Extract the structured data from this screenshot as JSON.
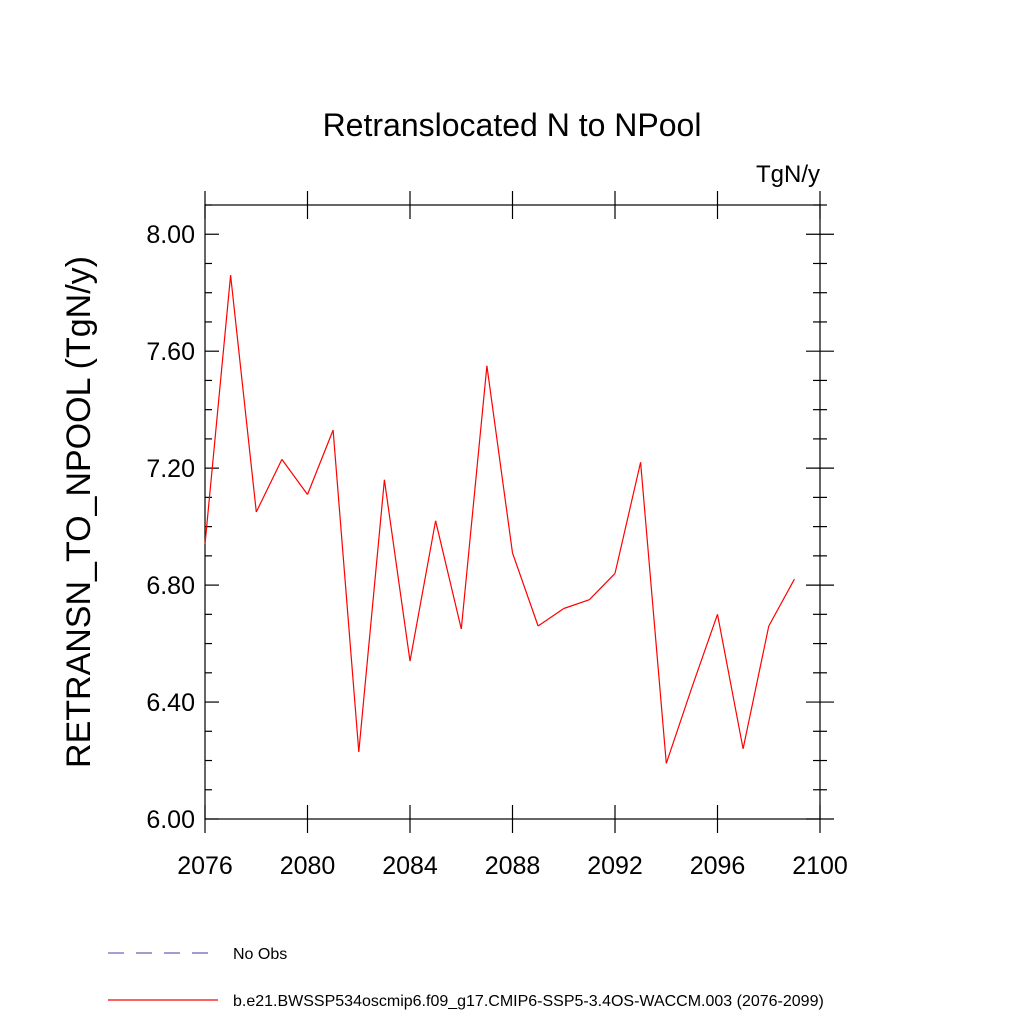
{
  "chart_data": {
    "type": "line",
    "title": "Retranslocated N to NPool",
    "units": "TgN/y",
    "ylabel": "RETRANSN_TO_NPOOL  (TgN/y)",
    "xlabel": "",
    "xlim": [
      2076,
      2100
    ],
    "ylim": [
      6.0,
      8.1
    ],
    "xticks": [
      2076,
      2080,
      2084,
      2088,
      2092,
      2096,
      2100
    ],
    "xtick_labels": [
      "2076",
      "2080",
      "2084",
      "2088",
      "2092",
      "2096",
      "2100"
    ],
    "yticks": [
      6.0,
      6.4,
      6.8,
      7.2,
      7.6,
      8.0
    ],
    "ytick_labels": [
      "6.00",
      "6.40",
      "6.80",
      "7.20",
      "7.60",
      "8.00"
    ],
    "series": [
      {
        "name": "b.e21.BWSSP534oscmip6.f09_g17.CMIP6-SSP5-3.4OS-WACCM.003 (2076-2099)",
        "color": "#ff0000",
        "style": "solid",
        "x": [
          2076,
          2077,
          2078,
          2079,
          2080,
          2081,
          2082,
          2083,
          2084,
          2085,
          2086,
          2087,
          2088,
          2089,
          2090,
          2091,
          2092,
          2093,
          2094,
          2095,
          2096,
          2097,
          2098,
          2099
        ],
        "values": [
          6.94,
          7.86,
          7.05,
          7.23,
          7.11,
          7.33,
          6.23,
          7.16,
          6.54,
          7.02,
          6.65,
          7.55,
          6.91,
          6.66,
          6.72,
          6.75,
          6.84,
          7.22,
          6.19,
          6.45,
          6.7,
          6.24,
          6.66,
          6.82
        ]
      }
    ],
    "legend": [
      {
        "label": "No Obs",
        "color": "#6e5fb4",
        "style": "dashed"
      },
      {
        "label": "b.e21.BWSSP534oscmip6.f09_g17.CMIP6-SSP5-3.4OS-WACCM.003 (2076-2099)",
        "color": "#ff0000",
        "style": "solid"
      }
    ]
  }
}
